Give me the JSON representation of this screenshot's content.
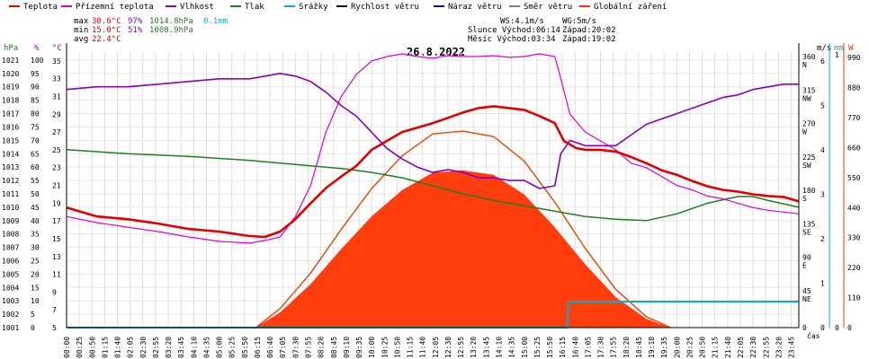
{
  "legend": [
    {
      "label": "Teplota",
      "color": "#e00000"
    },
    {
      "label": "Přízemní teplota",
      "color": "#dd00dd"
    },
    {
      "label": "Vlhkost",
      "color": "#8800bb"
    },
    {
      "label": "Tlak",
      "color": "#208020"
    },
    {
      "label": "Srážky",
      "color": "#00b0d0"
    },
    {
      "label": "Rychlost větru",
      "color": "#000000"
    },
    {
      "label": "Náraz větru",
      "color": "#000090"
    },
    {
      "label": "Směr větru",
      "color": "#808080"
    },
    {
      "label": "Globální záření",
      "color": "#ff3300"
    }
  ],
  "stats": {
    "max_label": "max",
    "max_temp": "30.6°C",
    "max_hum": "97%",
    "max_press": "1014.8hPa",
    "rain": "0.1mm",
    "min_label": "min",
    "min_temp": "15.0°C",
    "min_hum": "51%",
    "min_press": "1008.9hPa",
    "avg_label": "avg",
    "avg_temp": "22.4°C",
    "ws": "WS:4.1m/s",
    "wg": "WG:5m/s",
    "sun_rise": "Slunce Východ:06:14",
    "sun_set": "Západ:20:02",
    "moon_rise": "Měsíc Východ:03:34",
    "moon_set": "Západ:19:02"
  },
  "date": "26.8.2022",
  "axes": {
    "hpa": "hPa",
    "pct": "%",
    "degc": "°C",
    "ms": "m/s",
    "mm": "mm",
    "w": "W",
    "time": "čas"
  },
  "chart_data": {
    "type": "line",
    "title": "26.8.2022",
    "x_ticks": [
      "00:00",
      "00:25",
      "00:50",
      "01:15",
      "01:40",
      "02:05",
      "02:30",
      "02:55",
      "03:20",
      "03:45",
      "04:10",
      "04:35",
      "05:00",
      "05:25",
      "05:50",
      "06:15",
      "06:40",
      "07:05",
      "07:30",
      "07:55",
      "08:20",
      "08:45",
      "09:10",
      "09:35",
      "10:00",
      "10:25",
      "10:50",
      "11:15",
      "11:40",
      "12:05",
      "12:30",
      "12:55",
      "13:20",
      "13:45",
      "14:10",
      "14:35",
      "15:00",
      "15:25",
      "15:50",
      "16:15",
      "16:40",
      "17:05",
      "17:30",
      "17:55",
      "18:20",
      "18:45",
      "19:10",
      "19:35",
      "20:00",
      "20:25",
      "20:50",
      "21:15",
      "21:40",
      "22:05",
      "22:30",
      "22:55",
      "23:20",
      "23:45"
    ],
    "axis_hpa": [
      "1001",
      "1002",
      "1003",
      "1004",
      "1005",
      "1006",
      "1007",
      "1008",
      "1009",
      "1010",
      "1011",
      "1012",
      "1013",
      "1014",
      "1015",
      "1016",
      "1017",
      "1018",
      "1019",
      "1020",
      "1021"
    ],
    "axis_pct": [
      "0",
      "5",
      "10",
      "15",
      "20",
      "25",
      "30",
      "35",
      "40",
      "45",
      "50",
      "55",
      "60",
      "65",
      "70",
      "75",
      "80",
      "85",
      "90",
      "95",
      "100"
    ],
    "axis_temp": [
      "5",
      "7",
      "9",
      "11",
      "13",
      "15",
      "17",
      "19",
      "21",
      "23",
      "25",
      "27",
      "29",
      "31",
      "33",
      "35"
    ],
    "axis_dir": [
      "0",
      "45 NE",
      "90 E",
      "135 SE",
      "180 S",
      "225 SW",
      "270 W",
      "315 NW",
      "360 N"
    ],
    "axis_ms": [
      "0",
      "1",
      "2",
      "3",
      "4",
      "5",
      "6"
    ],
    "axis_mm": [
      "0",
      "1"
    ],
    "axis_w": [
      "0",
      "110",
      "220",
      "330",
      "440",
      "550",
      "660",
      "770",
      "880",
      "990"
    ],
    "ylim_temp": [
      5,
      36
    ],
    "ylim_pct": [
      0,
      103
    ],
    "ylim_hpa": [
      1001,
      1021.6
    ],
    "ylim_ms": [
      0,
      6.2
    ],
    "ylim_w": [
      0,
      1010
    ],
    "series": [
      {
        "name": "Teplota",
        "hours": [
          0,
          1,
          2,
          3,
          4,
          5,
          6,
          6.5,
          7,
          7.5,
          8,
          8.5,
          9,
          9.5,
          10,
          10.5,
          11,
          11.5,
          12,
          12.5,
          13,
          13.5,
          14,
          14.5,
          15,
          15.5,
          16,
          16.3,
          16.7,
          17,
          17.5,
          18,
          18.5,
          19,
          19.5,
          20,
          20.5,
          21,
          21.5,
          22,
          22.5,
          23,
          23.5,
          24
        ],
        "values": [
          18.5,
          17.5,
          17.2,
          16.7,
          16.1,
          15.8,
          15.3,
          15.2,
          15.8,
          17.2,
          19.0,
          20.7,
          22.0,
          23.2,
          25.0,
          26.0,
          27.0,
          27.5,
          28.0,
          28.6,
          29.2,
          29.7,
          29.9,
          29.7,
          29.5,
          28.8,
          28.0,
          26.0,
          25.2,
          25.0,
          25.0,
          24.8,
          24.2,
          23.5,
          22.7,
          22.2,
          21.5,
          20.9,
          20.5,
          20.3,
          20.0,
          19.8,
          19.7,
          19.2
        ]
      },
      {
        "name": "Přízemní teplota",
        "hours": [
          0,
          1,
          2,
          3,
          4,
          5,
          6,
          6.5,
          7,
          7.5,
          8,
          8.5,
          9,
          9.5,
          10,
          10.5,
          11,
          11.5,
          12,
          12.5,
          13,
          13.5,
          14,
          14.5,
          15,
          15.5,
          16,
          16.2,
          16.5,
          17,
          17.5,
          18,
          18.5,
          19,
          19.5,
          20,
          20.5,
          21,
          21.5,
          22,
          22.5,
          23,
          23.5,
          24
        ],
        "values": [
          17.5,
          16.8,
          16.3,
          15.8,
          15.2,
          14.7,
          14.5,
          14.8,
          15.2,
          17.5,
          21,
          27,
          31,
          33.5,
          35.0,
          35.5,
          35.8,
          35.5,
          35.3,
          35.6,
          35.5,
          35.5,
          35.6,
          35.4,
          35.5,
          35.8,
          35.5,
          33.0,
          29.0,
          27.0,
          26.0,
          25.0,
          23.5,
          23.0,
          22.0,
          21.0,
          20.5,
          19.8,
          19.5,
          19.0,
          18.5,
          18.2,
          18.0,
          17.8
        ]
      },
      {
        "name": "Vlhkost",
        "hours": [
          0,
          1,
          2,
          3,
          4,
          5,
          6,
          6.5,
          7,
          7.5,
          8,
          8.5,
          9,
          9.5,
          10,
          10.5,
          11,
          11.5,
          12,
          12.5,
          13,
          13.5,
          14,
          14.5,
          15,
          15.5,
          16,
          16.2,
          16.5,
          17,
          17.5,
          18,
          18.5,
          19,
          19.5,
          20,
          20.5,
          21,
          21.5,
          22,
          22.5,
          23,
          23.5,
          24
        ],
        "values": [
          89,
          90,
          90,
          91,
          92,
          93,
          93,
          94,
          95,
          94,
          92,
          88,
          83,
          79,
          73,
          67,
          63,
          60,
          58,
          59,
          58,
          56,
          56,
          55,
          55,
          52,
          53,
          65,
          70,
          68,
          68,
          68,
          72,
          76,
          78,
          80,
          82,
          84,
          86,
          87,
          89,
          90,
          91,
          91
        ]
      },
      {
        "name": "Tlak",
        "hours": [
          0,
          2,
          4,
          6,
          7,
          8,
          9,
          10,
          11,
          12,
          13,
          14,
          15,
          16,
          17,
          18,
          19,
          20,
          21,
          22,
          22.5,
          23,
          24
        ],
        "values": [
          1014.3,
          1014.0,
          1013.8,
          1013.5,
          1013.3,
          1013.1,
          1012.9,
          1012.6,
          1012.2,
          1011.6,
          1011.0,
          1010.5,
          1010.1,
          1009.7,
          1009.3,
          1009.1,
          1009.0,
          1009.5,
          1010.3,
          1010.8,
          1010.8,
          1010.5,
          1010.0
        ]
      },
      {
        "name": "Srážky",
        "hours": [
          0,
          16.4,
          16.45,
          24
        ],
        "values": [
          0,
          0,
          0.1,
          0.1
        ]
      },
      {
        "name": "Globální záření",
        "hours": [
          6.2,
          7,
          8,
          9,
          10,
          11,
          12,
          13,
          14,
          15,
          16,
          17,
          18,
          19,
          19.8
        ],
        "values": [
          0,
          70,
          200,
          360,
          510,
          630,
          710,
          720,
          700,
          610,
          460,
          290,
          140,
          40,
          0
        ]
      }
    ]
  }
}
